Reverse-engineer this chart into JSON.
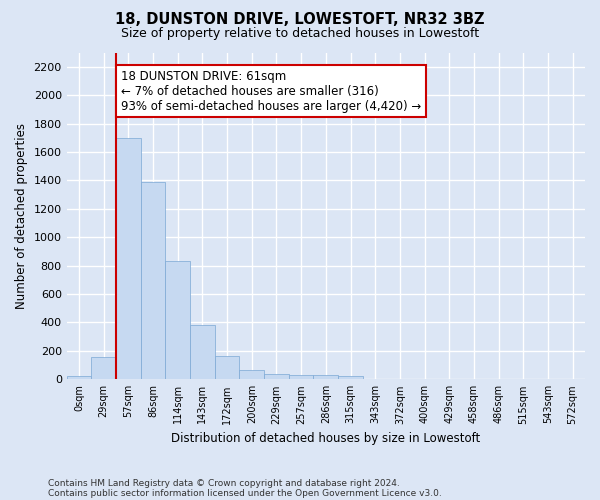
{
  "title": "18, DUNSTON DRIVE, LOWESTOFT, NR32 3BZ",
  "subtitle": "Size of property relative to detached houses in Lowestoft",
  "xlabel": "Distribution of detached houses by size in Lowestoft",
  "ylabel": "Number of detached properties",
  "bin_labels": [
    "0sqm",
    "29sqm",
    "57sqm",
    "86sqm",
    "114sqm",
    "143sqm",
    "172sqm",
    "200sqm",
    "229sqm",
    "257sqm",
    "286sqm",
    "315sqm",
    "343sqm",
    "372sqm",
    "400sqm",
    "429sqm",
    "458sqm",
    "486sqm",
    "515sqm",
    "543sqm",
    "572sqm"
  ],
  "bar_heights": [
    20,
    155,
    1700,
    1390,
    835,
    385,
    165,
    65,
    38,
    28,
    28,
    20,
    0,
    0,
    0,
    0,
    0,
    0,
    0,
    0
  ],
  "bar_color": "#c6d9f1",
  "bar_edge_color": "#7ba7d4",
  "ylim": [
    0,
    2300
  ],
  "yticks": [
    0,
    200,
    400,
    600,
    800,
    1000,
    1200,
    1400,
    1600,
    1800,
    2000,
    2200
  ],
  "red_line_x": 2,
  "annotation_text": "18 DUNSTON DRIVE: 61sqm\n← 7% of detached houses are smaller (316)\n93% of semi-detached houses are larger (4,420) →",
  "annotation_box_color": "#ffffff",
  "annotation_box_edge": "#cc0000",
  "footer_line1": "Contains HM Land Registry data © Crown copyright and database right 2024.",
  "footer_line2": "Contains public sector information licensed under the Open Government Licence v3.0.",
  "background_color": "#dce6f5",
  "plot_background_color": "#dce6f5",
  "grid_color": "#ffffff"
}
